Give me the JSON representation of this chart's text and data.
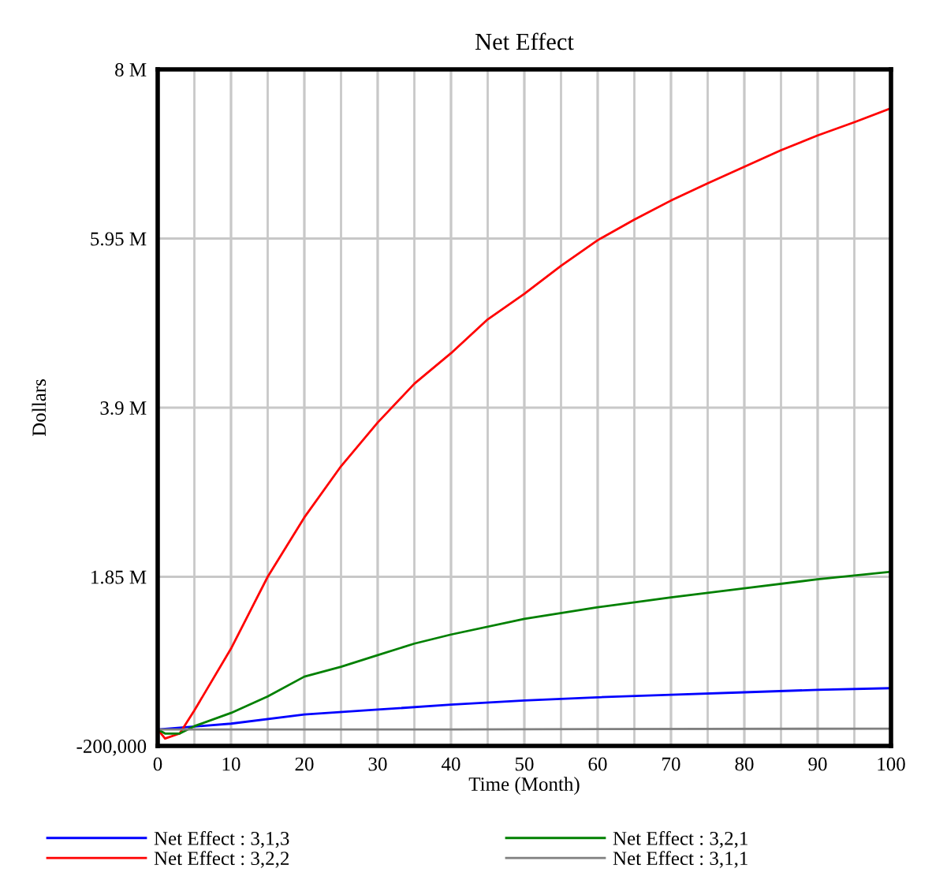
{
  "chart_data": {
    "type": "line",
    "title": "Net Effect",
    "xlabel": "Time (Month)",
    "ylabel": "Dollars",
    "xlim": [
      0,
      100
    ],
    "xticks": [
      0,
      10,
      20,
      30,
      40,
      50,
      60,
      70,
      80,
      90,
      100
    ],
    "ylim": [
      -200000,
      8000000
    ],
    "yticks": [
      {
        "value": -200000,
        "label": "-200,000"
      },
      {
        "value": 1850000,
        "label": "1.85 M"
      },
      {
        "value": 3900000,
        "label": "3.9 M"
      },
      {
        "value": 5950000,
        "label": "5.95 M"
      },
      {
        "value": 8000000,
        "label": "8 M"
      }
    ],
    "grid": true,
    "legend": "bottom",
    "line_style": "solid",
    "marker": "none",
    "series": [
      {
        "name": "Net Effect : 3,1,3",
        "color": "#0000ff",
        "x": [
          0,
          10,
          20,
          30,
          40,
          50,
          60,
          70,
          80,
          90,
          100
        ],
        "values": [
          0,
          70000,
          180000,
          240000,
          300000,
          350000,
          390000,
          420000,
          450000,
          480000,
          500000
        ]
      },
      {
        "name": "Net Effect : 3,2,2",
        "color": "#ff0000",
        "x": [
          0,
          1,
          3,
          5,
          10,
          15,
          20,
          25,
          30,
          35,
          40,
          45,
          50,
          55,
          60,
          65,
          70,
          75,
          80,
          85,
          90,
          95,
          100
        ],
        "values": [
          0,
          -110000,
          -50000,
          230000,
          980000,
          1850000,
          2570000,
          3190000,
          3720000,
          4190000,
          4560000,
          4970000,
          5280000,
          5620000,
          5930000,
          6180000,
          6410000,
          6620000,
          6820000,
          7020000,
          7200000,
          7360000,
          7530000
        ]
      },
      {
        "name": "Net Effect : 3,2,1",
        "color": "#008000",
        "x": [
          0,
          1,
          3,
          5,
          10,
          15,
          20,
          25,
          30,
          35,
          40,
          50,
          60,
          70,
          80,
          90,
          100
        ],
        "values": [
          0,
          -50000,
          -50000,
          40000,
          200000,
          400000,
          640000,
          760000,
          900000,
          1040000,
          1150000,
          1340000,
          1480000,
          1600000,
          1710000,
          1820000,
          1910000
        ]
      },
      {
        "name": "Net Effect : 3,1,1",
        "color": "#808080",
        "x": [
          0,
          40,
          100
        ],
        "values": [
          0,
          0,
          10000
        ]
      }
    ]
  }
}
